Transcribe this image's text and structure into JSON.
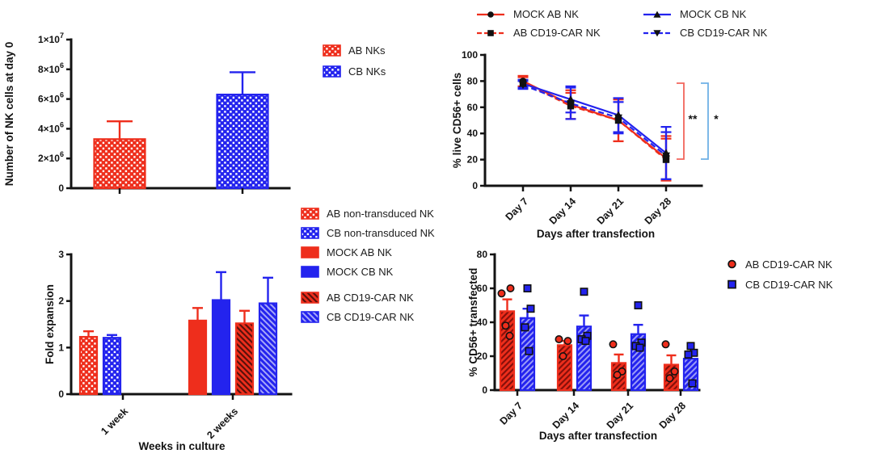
{
  "colors": {
    "red": "#ee2e1c",
    "blue": "#2323ee",
    "marker_black": "#111111",
    "axis_black": "#131313",
    "bracket_red": "#f2665c",
    "bracket_blue": "#6fb0e6"
  },
  "legends": {
    "panelA": {
      "items": [
        {
          "label": "AB NKs",
          "swatch": "checker-red"
        },
        {
          "label": "CB NKs",
          "swatch": "checker-blue"
        }
      ]
    },
    "panelB": {
      "items": [
        {
          "label": "MOCK AB NK",
          "line": "red-solid",
          "marker": "circle"
        },
        {
          "label": "MOCK CB NK",
          "line": "blue-solid",
          "marker": "triangle-up"
        },
        {
          "label": "AB CD19-CAR NK",
          "line": "red-dashed",
          "marker": "square"
        },
        {
          "label": "CB CD19-CAR NK",
          "line": "blue-dashed",
          "marker": "triangle-down"
        }
      ]
    },
    "panelC": {
      "items": [
        {
          "label": "AB non-transduced NK",
          "swatch": "checker-red"
        },
        {
          "label": "CB non-transduced NK",
          "swatch": "checker-blue"
        },
        {
          "label": "MOCK AB NK",
          "swatch": "solid-red"
        },
        {
          "label": "MOCK CB NK",
          "swatch": "solid-blue"
        },
        {
          "label": "AB CD19-CAR NK",
          "swatch": "hatch-red"
        },
        {
          "label": "CB CD19-CAR NK",
          "swatch": "hatch-blue"
        }
      ]
    },
    "panelD": {
      "items": [
        {
          "label": "AB CD19-CAR NK",
          "marker": "red-circle"
        },
        {
          "label": "CB CD19-CAR NK",
          "marker": "blue-square"
        }
      ]
    }
  },
  "chart_data": [
    {
      "id": "nk-cells-day0",
      "type": "bar",
      "ylabel": "Number of NK cells at day 0",
      "ylim": [
        0,
        10000000
      ],
      "yticks": [
        {
          "value": 0,
          "label": "0"
        },
        {
          "value": 2000000,
          "label": "2×10^6"
        },
        {
          "value": 4000000,
          "label": "4×10^6"
        },
        {
          "value": 6000000,
          "label": "6×10^6"
        },
        {
          "value": 8000000,
          "label": "8×10^6"
        },
        {
          "value": 10000000,
          "label": "1×10^7"
        }
      ],
      "series": [
        {
          "name": "AB NKs",
          "value": 3300000,
          "error": 1200000,
          "style": "checker-red"
        },
        {
          "name": "CB NKs",
          "value": 6300000,
          "error": 1500000,
          "style": "checker-blue"
        }
      ]
    },
    {
      "id": "live-cd56-cells",
      "type": "line",
      "ylabel": "% live CD56+ cells",
      "xlabel": "Days after transfection",
      "categories": [
        "Day 7",
        "Day 14",
        "Day 21",
        "Day 28"
      ],
      "ylim": [
        0,
        100
      ],
      "yticks": [
        0,
        20,
        40,
        60,
        80,
        100
      ],
      "series": [
        {
          "name": "MOCK AB NK",
          "color": "red",
          "line": "solid",
          "marker": "circle",
          "values": [
            80,
            62,
            50,
            21
          ],
          "errors": [
            4,
            11,
            16,
            17
          ]
        },
        {
          "name": "AB CD19-CAR NK",
          "color": "red",
          "line": "dashed",
          "marker": "square",
          "values": [
            79,
            61,
            50,
            20
          ],
          "errors": [
            4,
            10,
            16,
            16
          ]
        },
        {
          "name": "MOCK CB NK",
          "color": "blue",
          "line": "solid",
          "marker": "triangle-up",
          "values": [
            78,
            66,
            54,
            25
          ],
          "errors": [
            3,
            10,
            13,
            20
          ]
        },
        {
          "name": "CB CD19-CAR NK",
          "color": "blue",
          "line": "dashed",
          "marker": "triangle-down",
          "values": [
            77,
            63,
            52,
            23
          ],
          "errors": [
            3,
            12,
            12,
            18
          ]
        }
      ],
      "significance": [
        {
          "label": "**",
          "color": "bracket_red"
        },
        {
          "label": "*",
          "color": "bracket_blue"
        }
      ]
    },
    {
      "id": "fold-expansion",
      "type": "grouped-bar",
      "ylabel": "Fold expansion",
      "xlabel": "Weeks in culture",
      "ylim": [
        0,
        3
      ],
      "yticks": [
        0,
        1,
        2,
        3
      ],
      "groups": [
        {
          "label": "1 week",
          "bars": [
            {
              "name": "AB non-transduced NK",
              "value": 1.23,
              "error": 0.12,
              "style": "checker-red"
            },
            {
              "name": "CB non-transduced NK",
              "value": 1.21,
              "error": 0.06,
              "style": "checker-blue"
            }
          ]
        },
        {
          "label": "2 weeks",
          "bars": [
            {
              "name": "MOCK AB NK",
              "value": 1.58,
              "error": 0.27,
              "style": "solid-red"
            },
            {
              "name": "MOCK CB NK",
              "value": 2.02,
              "error": 0.6,
              "style": "solid-blue"
            },
            {
              "name": "AB CD19-CAR NK",
              "value": 1.52,
              "error": 0.27,
              "style": "hatch-red"
            },
            {
              "name": "CB CD19-CAR NK",
              "value": 1.95,
              "error": 0.55,
              "style": "hatch-blue"
            }
          ]
        }
      ]
    },
    {
      "id": "cd56-transfected",
      "type": "bar-scatter",
      "ylabel": "% CD56+ transfected",
      "xlabel": "Days after transfection",
      "categories": [
        "Day 7",
        "Day 14",
        "Day 21",
        "Day 28"
      ],
      "ylim": [
        0,
        80
      ],
      "yticks": [
        0,
        20,
        40,
        60,
        80
      ],
      "series": [
        {
          "name": "AB CD19-CAR NK",
          "style": "hatch-red-f",
          "marker": "circle",
          "values": [
            46.5,
            26.5,
            16,
            15
          ],
          "errors": [
            7,
            2.5,
            5,
            5.5
          ],
          "points": [
            [
              57,
              60,
              38,
              32
            ],
            [
              30,
              29,
              20
            ],
            [
              27,
              11,
              9
            ],
            [
              27,
              11,
              7
            ]
          ]
        },
        {
          "name": "CB CD19-CAR NK",
          "style": "hatch-blue-f",
          "marker": "square",
          "values": [
            42.5,
            37.5,
            33,
            18.5
          ],
          "errors": [
            5.5,
            6.5,
            5.5,
            3.5
          ],
          "points": [
            [
              60,
              48,
              37,
              23
            ],
            [
              58,
              32,
              30,
              29
            ],
            [
              50,
              28,
              26,
              25
            ],
            [
              26,
              22,
              21,
              4
            ]
          ]
        }
      ]
    }
  ]
}
